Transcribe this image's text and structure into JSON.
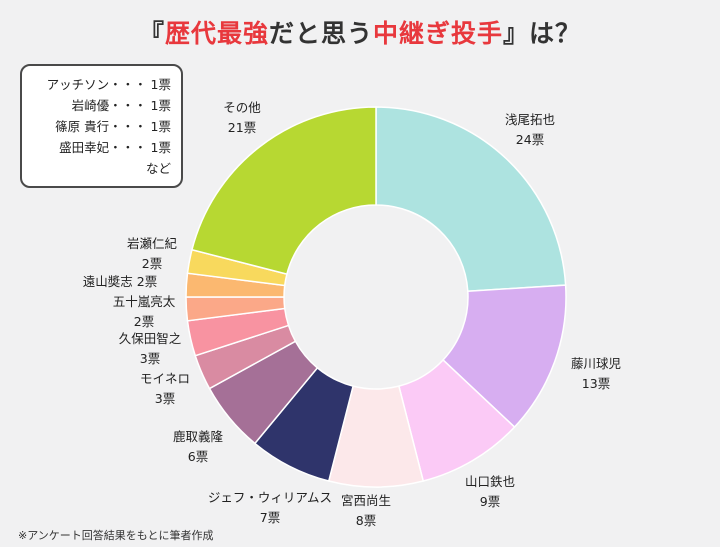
{
  "title": {
    "pre": "『",
    "hl1": "歴代最強",
    "mid": "だと思う",
    "hl2": "中継ぎ投手",
    "post": "』は？"
  },
  "footnote": "※アンケート回答結果をもとに筆者作成",
  "other_detail": {
    "rows": [
      "アッチソン・・・ 1票",
      "岩崎優・・・ 1票",
      "篠原 貴行・・・ 1票",
      "盛田幸妃・・・ 1票",
      "など"
    ]
  },
  "colors": {
    "title_highlight": "#e8383d",
    "background": "#f1f1f2"
  },
  "chart_data": {
    "type": "pie",
    "donut": true,
    "title": "『歴代最強だと思う中継ぎ投手』は？",
    "unit": "票",
    "series": [
      {
        "name": "浅尾拓也",
        "value": 24,
        "value_label": "24票",
        "color": "#ade3e0"
      },
      {
        "name": "藤川球児",
        "value": 13,
        "value_label": "13票",
        "color": "#d7aef1"
      },
      {
        "name": "山口鉄也",
        "value": 9,
        "value_label": "9票",
        "color": "#fbcaf6"
      },
      {
        "name": "宮西尚生",
        "value": 8,
        "value_label": "8票",
        "color": "#fce8ea"
      },
      {
        "name": "ジェフ・ウィリアムス",
        "value": 7,
        "value_label": "7票",
        "color": "#2f346b"
      },
      {
        "name": "鹿取義隆",
        "value": 6,
        "value_label": "6票",
        "color": "#a57097"
      },
      {
        "name": "モイネロ",
        "value": 3,
        "value_label": "3票",
        "color": "#d98ba2"
      },
      {
        "name": "久保田智之",
        "value": 3,
        "value_label": "3票",
        "color": "#f893a1"
      },
      {
        "name": "五十嵐亮太",
        "value": 2,
        "value_label": "2票",
        "color": "#fba888"
      },
      {
        "name": "遠山奬志",
        "value": 2,
        "value_label": "2票",
        "color": "#fbb870"
      },
      {
        "name": "岩瀬仁紀",
        "value": 2,
        "value_label": "2票",
        "color": "#f8d95d"
      },
      {
        "name": "その他",
        "value": 21,
        "value_label": "21票",
        "color": "#b7d832"
      }
    ]
  }
}
